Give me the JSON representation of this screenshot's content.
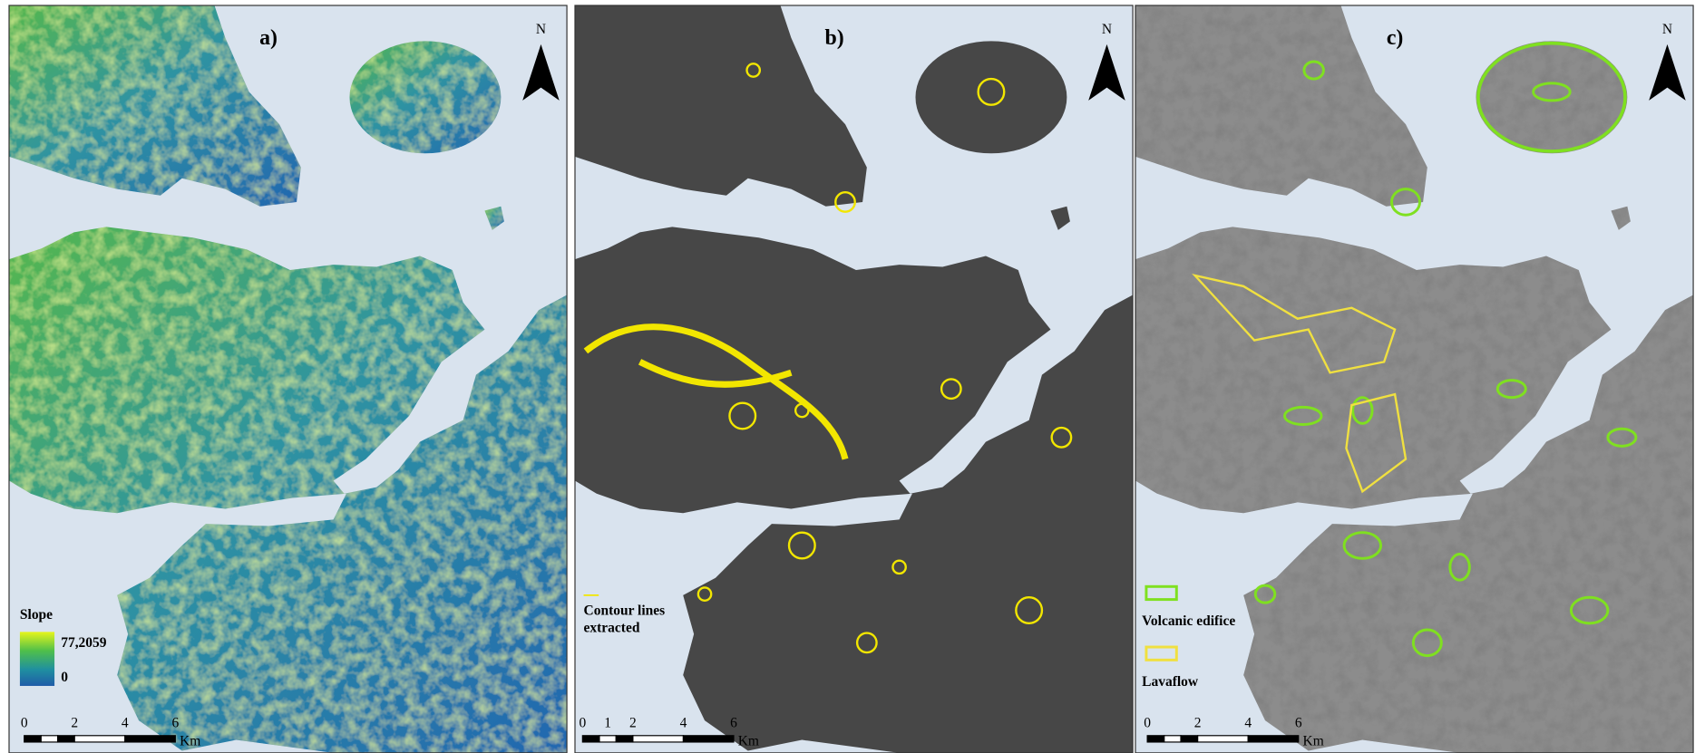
{
  "panels": [
    {
      "label": "a)",
      "north": "N",
      "scale": {
        "ticks": [
          0,
          2,
          4,
          6
        ],
        "unit": "Km"
      },
      "legend": {
        "title": "Slope",
        "max": "77,2059",
        "min": "0"
      }
    },
    {
      "label": "b)",
      "north": "N",
      "scale": {
        "ticks": [
          0,
          1,
          2,
          4,
          6
        ],
        "unit": "Km"
      },
      "legend": {
        "lines": [
          "Contour lines",
          "extracted"
        ]
      }
    },
    {
      "label": "c)",
      "north": "N",
      "scale": {
        "ticks": [
          0,
          2,
          4,
          6
        ],
        "unit": "Km"
      },
      "legend": {
        "items": [
          "Volcanic edifice",
          "Lavaflow"
        ]
      }
    }
  ]
}
